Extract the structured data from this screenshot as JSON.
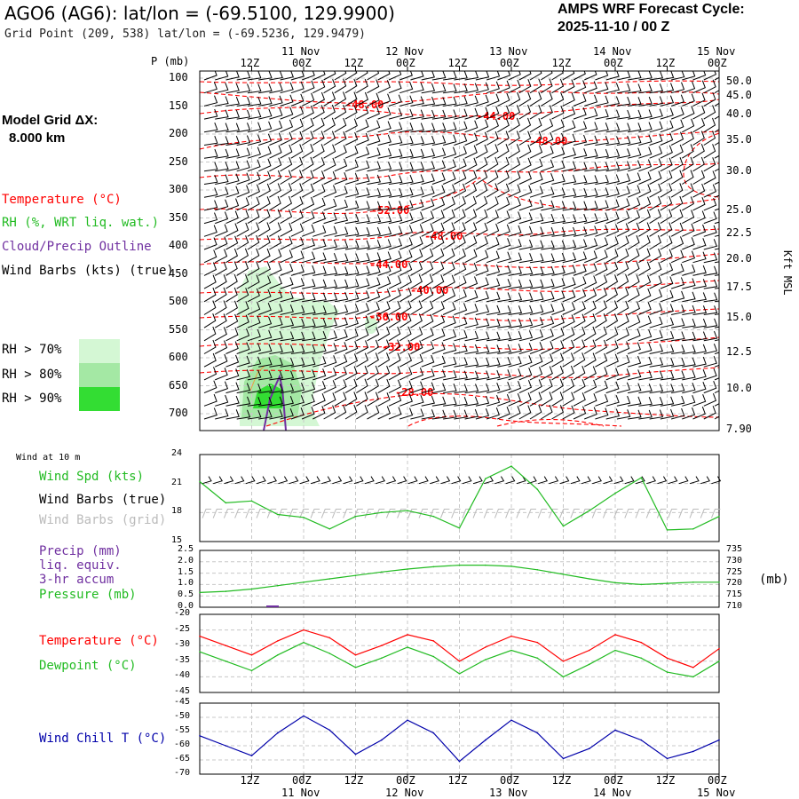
{
  "header": {
    "title": "AGO6 (AG6):  lat/lon = (-69.5100, 129.9900)",
    "grid_point": "Grid Point (209, 538) lat/lon = (-69.5236, 129.9479)",
    "cycle_line1": "AMPS WRF Forecast Cycle:",
    "cycle_line2": "2025-11-10 / 00  Z",
    "model_grid_label": "Model Grid ΔX:",
    "model_grid_value": "8.000 km"
  },
  "legend": {
    "temperature": "Temperature (°C)",
    "rh": "RH (%, WRT liq. wat.)",
    "cloud": "Cloud/Precip Outline",
    "wind_barbs": "Wind Barbs (kts) (true)",
    "rh70": "RH > 70%",
    "rh80": "RH > 80%",
    "rh90": "RH > 90%"
  },
  "colors": {
    "temperature": "#ff0000",
    "rh": "#22bb22",
    "cloud": "#7030a0",
    "rh70": "#d4f7d4",
    "rh80": "#a4e8a4",
    "rh90": "#33dd33",
    "dewpoint": "#22bb22",
    "wind_chill": "#0000aa",
    "grid_barbs": "#bbbbbb"
  },
  "time_axis": {
    "top_hours": [
      "12Z",
      "00Z",
      "12Z",
      "00Z",
      "12Z",
      "00Z",
      "12Z",
      "00Z",
      "12Z",
      "00Z"
    ],
    "dates": [
      "11 Nov",
      "12 Nov",
      "13 Nov",
      "14 Nov",
      "15 Nov"
    ]
  },
  "sounding": {
    "p_label": "P (mb)",
    "pressure_ticks": [
      "100",
      "150",
      "200",
      "250",
      "300",
      "350",
      "400",
      "450",
      "500",
      "550",
      "600",
      "650",
      "700"
    ],
    "height_ticks": [
      "50.0",
      "45.0",
      "40.0",
      "35.0",
      "30.0",
      "25.0",
      "22.5",
      "20.0",
      "17.5",
      "15.0",
      "12.5",
      "10.0",
      "7.90"
    ],
    "height_axis_label": "Kft MSL",
    "contour_labels": [
      "-48.00",
      "-44.00",
      "-48.00",
      "-52.00",
      "-48.00",
      "-44.00",
      "-40.00",
      "-36.00",
      "-32.00",
      "-28.00"
    ]
  },
  "panels": {
    "wind": {
      "corner_label": "Wind at 10 m",
      "spd_label": "Wind Spd (kts)",
      "barbs_true_label": "Wind Barbs (true)",
      "barbs_grid_label": "Wind Barbs (grid)",
      "yticks": [
        "24",
        "21",
        "18",
        "15"
      ]
    },
    "precip": {
      "precip_label": "Precip (mm)",
      "liq_label": "liq. equiv.",
      "accum_label": "3-hr accum",
      "pressure_label": "Pressure (mb)",
      "unit": "(mb)",
      "left_ticks": [
        "2.5",
        "2.0",
        "1.5",
        "1.0",
        "0.5",
        "0.0"
      ],
      "right_ticks": [
        "735",
        "730",
        "725",
        "720",
        "715",
        "710"
      ]
    },
    "temp": {
      "temp_label": "Temperature (°C)",
      "dew_label": "Dewpoint (°C)",
      "yticks": [
        "-20",
        "-25",
        "-30",
        "-35",
        "-40",
        "-45"
      ]
    },
    "chill": {
      "label": "Wind Chill T (°C)",
      "yticks": [
        "-45",
        "-50",
        "-55",
        "-60",
        "-65",
        "-70"
      ]
    }
  },
  "chart_data": [
    {
      "type": "line",
      "title": "Wind Spd (kts)",
      "ylim": [
        15,
        24
      ],
      "x_hours": [
        0,
        6,
        12,
        18,
        24,
        30,
        36,
        42,
        48,
        54,
        60,
        66,
        72,
        78,
        84,
        90,
        96,
        102,
        108,
        114,
        120
      ],
      "values": [
        21.2,
        19.0,
        19.2,
        17.8,
        17.5,
        16.3,
        17.6,
        18.0,
        18.2,
        17.6,
        16.4,
        21.5,
        22.8,
        20.4,
        16.6,
        18.2,
        20.0,
        21.6,
        16.2,
        16.3,
        17.6
      ]
    },
    {
      "type": "line",
      "title": "Pressure (mb)",
      "ylim": [
        710,
        735
      ],
      "x_hours": [
        0,
        6,
        12,
        18,
        24,
        30,
        36,
        42,
        48,
        54,
        60,
        66,
        72,
        78,
        84,
        90,
        96,
        102,
        108,
        114,
        120
      ],
      "values": [
        716.5,
        717,
        718,
        719.5,
        721,
        722.5,
        724,
        725.5,
        726.8,
        727.8,
        728.5,
        728.5,
        728,
        726.5,
        724.5,
        722.5,
        720.8,
        720,
        720.5,
        721,
        721
      ]
    },
    {
      "type": "line",
      "title": "Temperature / Dewpoint (°C)",
      "ylim": [
        -45,
        -20
      ],
      "x_hours": [
        0,
        6,
        12,
        18,
        24,
        30,
        36,
        42,
        48,
        54,
        60,
        66,
        72,
        78,
        84,
        90,
        96,
        102,
        108,
        114,
        120
      ],
      "series": [
        {
          "name": "Temperature",
          "values": [
            -27,
            -30,
            -33,
            -28.5,
            -25,
            -27.5,
            -33,
            -30,
            -26.5,
            -28.5,
            -35,
            -30.5,
            -27,
            -29,
            -35,
            -31.5,
            -26.5,
            -29,
            -34,
            -37,
            -31
          ]
        },
        {
          "name": "Dewpoint",
          "values": [
            -32,
            -35,
            -38,
            -33,
            -29,
            -32.5,
            -37,
            -34,
            -30.5,
            -33.5,
            -39,
            -34.5,
            -31.5,
            -34,
            -40,
            -36,
            -31.5,
            -34,
            -38.5,
            -40,
            -35
          ]
        }
      ]
    },
    {
      "type": "line",
      "title": "Wind Chill T (°C)",
      "ylim": [
        -70,
        -45
      ],
      "x_hours": [
        0,
        6,
        12,
        18,
        24,
        30,
        36,
        42,
        48,
        54,
        60,
        66,
        72,
        78,
        84,
        90,
        96,
        102,
        108,
        114,
        120
      ],
      "values": [
        -56.5,
        -60,
        -63.5,
        -55.5,
        -49.5,
        -54.5,
        -63,
        -58,
        -51,
        -55.5,
        -65.5,
        -58,
        -51,
        -55.5,
        -64.5,
        -61,
        -54.5,
        -58,
        -64.5,
        -62,
        -58
      ]
    }
  ]
}
